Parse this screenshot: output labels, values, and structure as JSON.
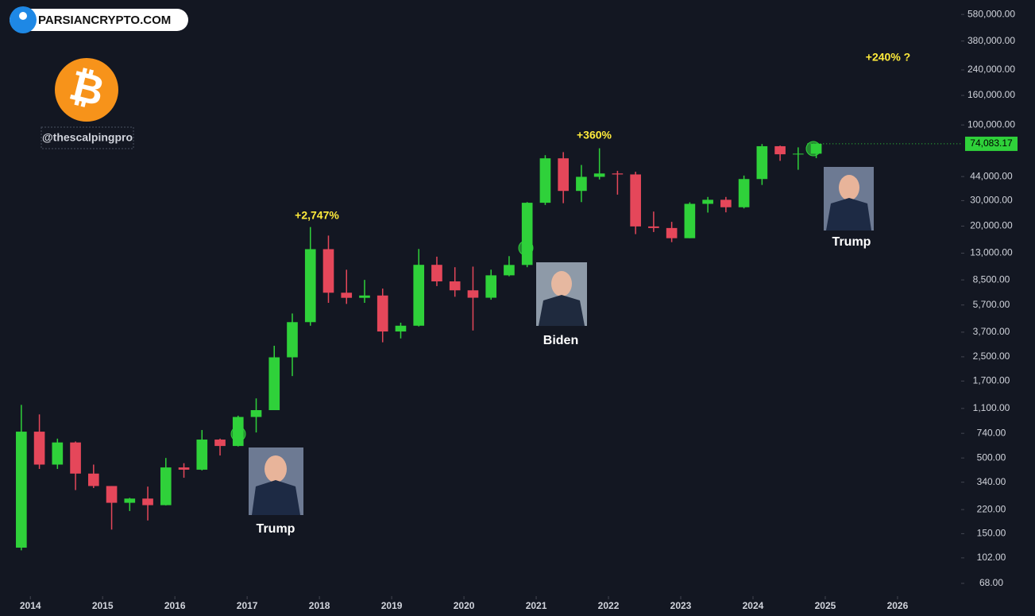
{
  "header": {
    "site": "PARSIANCRYPTO.COM",
    "handle": "@thescalpingpro"
  },
  "chart_data": {
    "type": "candlestick",
    "x": [
      2013.75,
      2014.0,
      2014.25,
      2014.5,
      2014.75,
      2015.0,
      2015.25,
      2015.5,
      2015.75,
      2016.0,
      2016.25,
      2016.5,
      2016.75,
      2017.0,
      2017.25,
      2017.5,
      2017.75,
      2018.0,
      2018.25,
      2018.5,
      2018.75,
      2019.0,
      2019.25,
      2019.5,
      2019.75,
      2020.0,
      2020.25,
      2020.5,
      2020.75,
      2021.0,
      2021.25,
      2021.5,
      2021.75,
      2022.0,
      2022.25,
      2022.5,
      2022.75,
      2023.0,
      2023.25,
      2023.5,
      2023.75,
      2024.0,
      2024.25,
      2024.5,
      2024.75
    ],
    "open": [
      120,
      760,
      450,
      640,
      390,
      320,
      245,
      262,
      236,
      430,
      415,
      670,
      605,
      960,
      1070,
      2480,
      4340,
      13860,
      6930,
      6390,
      6630,
      3740,
      4100,
      10800,
      8300,
      7200,
      6400,
      9140,
      10780,
      28990,
      58800,
      35000,
      43800,
      46200,
      45500,
      19900,
      19400,
      16500,
      28500,
      30400,
      27000,
      42300,
      71300,
      62700,
      63300
    ],
    "high": [
      1163,
      1000,
      680,
      650,
      450,
      320,
      265,
      317,
      500,
      460,
      780,
      680,
      980,
      1290,
      2980,
      4980,
      19700,
      17200,
      9990,
      8500,
      7400,
      4300,
      13900,
      12300,
      10400,
      10500,
      10000,
      12400,
      29300,
      61800,
      64900,
      52900,
      69000,
      48200,
      47500,
      25200,
      21400,
      29200,
      31800,
      31800,
      44700,
      73800,
      72000,
      70000,
      74500
    ],
    "low": [
      115,
      420,
      420,
      300,
      310,
      160,
      215,
      185,
      235,
      365,
      410,
      520,
      600,
      750,
      1070,
      1840,
      4100,
      5900,
      5800,
      5900,
      3150,
      3350,
      4050,
      7700,
      6500,
      3800,
      6200,
      9000,
      10400,
      28000,
      28800,
      29300,
      42000,
      33000,
      17600,
      18200,
      15500,
      16500,
      24800,
      24900,
      26500,
      38500,
      56500,
      49000,
      59000
    ],
    "close": [
      760,
      450,
      640,
      390,
      320,
      245,
      262,
      236,
      430,
      415,
      670,
      605,
      960,
      1070,
      2480,
      4340,
      13860,
      6930,
      6390,
      6630,
      3740,
      4100,
      10800,
      8300,
      7200,
      6400,
      9140,
      10780,
      28990,
      58800,
      35000,
      43800,
      46200,
      45500,
      19900,
      19400,
      16500,
      28500,
      30400,
      27000,
      42300,
      71300,
      62700,
      63300,
      74083.17
    ],
    "last_label": "74,083.17",
    "up_color": "#2fd13a",
    "down_color": "#e5475a",
    "log_scale": true,
    "xlim": [
      2013.58,
      2026.88
    ],
    "xticks": [
      2014,
      2015,
      2016,
      2017,
      2018,
      2019,
      2020,
      2021,
      2022,
      2023,
      2024,
      2025,
      2026
    ],
    "ylim": [
      55.5,
      730000
    ],
    "yticks": [
      {
        "value": 68,
        "label": "68.00"
      },
      {
        "value": 102,
        "label": "102.00"
      },
      {
        "value": 150,
        "label": "150.00"
      },
      {
        "value": 220,
        "label": "220.00"
      },
      {
        "value": 340,
        "label": "340.00"
      },
      {
        "value": 500,
        "label": "500.00"
      },
      {
        "value": 740,
        "label": "740.00"
      },
      {
        "value": 1100,
        "label": "1,100.00"
      },
      {
        "value": 1700,
        "label": "1,700.00"
      },
      {
        "value": 2500,
        "label": "2,500.00"
      },
      {
        "value": 3700,
        "label": "3,700.00"
      },
      {
        "value": 5700,
        "label": "5,700.00"
      },
      {
        "value": 8500,
        "label": "8,500.00"
      },
      {
        "value": 13000,
        "label": "13,000.00"
      },
      {
        "value": 20000,
        "label": "20,000.00"
      },
      {
        "value": 30000,
        "label": "30,000.00"
      },
      {
        "value": 44000,
        "label": "44,000.00"
      },
      {
        "value": 100000,
        "label": "100,000.00"
      },
      {
        "value": 160000,
        "label": "160,000.00"
      },
      {
        "value": 240000,
        "label": "240,000.00"
      },
      {
        "value": 380000,
        "label": "380,000.00"
      },
      {
        "value": 580000,
        "label": "580,000.00"
      }
    ],
    "annotations": [
      "+2,747%",
      "+360%",
      "+240% ?"
    ],
    "captions": [
      "Trump",
      "Biden",
      "Trump"
    ]
  }
}
